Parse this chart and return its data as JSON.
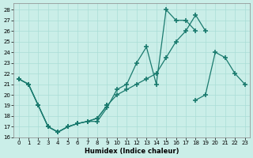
{
  "xlabel": "Humidex (Indice chaleur)",
  "bg_color": "#caeee8",
  "line_color": "#1a7a6e",
  "grid_color": "#aaddd6",
  "xlim": [
    -0.5,
    23.5
  ],
  "ylim": [
    16,
    28.6
  ],
  "xticks": [
    0,
    1,
    2,
    3,
    4,
    5,
    6,
    7,
    8,
    9,
    10,
    11,
    12,
    13,
    14,
    15,
    16,
    17,
    18,
    19,
    20,
    21,
    22,
    23
  ],
  "yticks": [
    16,
    17,
    18,
    19,
    20,
    21,
    22,
    23,
    24,
    25,
    26,
    27,
    28
  ],
  "line1_x": [
    0,
    1,
    2,
    3,
    4,
    5,
    6,
    7,
    8,
    9,
    10,
    11,
    12,
    13,
    14,
    15,
    16,
    17,
    18
  ],
  "line1_y": [
    21.5,
    21.0,
    19.0,
    17.0,
    16.5,
    17.0,
    17.3,
    17.5,
    17.5,
    18.8,
    20.5,
    21.0,
    23.0,
    24.5,
    21.0,
    28.0,
    27.0,
    27.0,
    26.0
  ],
  "line2_x": [
    0,
    1,
    2,
    3,
    4,
    5,
    6,
    7,
    8,
    9,
    10,
    11,
    12,
    13,
    14,
    15,
    16,
    17,
    18,
    19
  ],
  "line2_y": [
    21.5,
    21.0,
    19.0,
    17.0,
    16.5,
    17.0,
    17.3,
    17.5,
    17.8,
    19.0,
    20.0,
    20.5,
    21.0,
    21.5,
    22.0,
    23.5,
    25.0,
    26.0,
    27.5,
    26.0
  ],
  "line3_x": [
    0,
    1,
    2,
    3,
    4,
    5,
    6,
    7,
    8,
    9,
    18,
    19,
    20,
    21,
    22,
    23
  ],
  "line3_y": [
    21.5,
    21.0,
    19.0,
    17.0,
    16.5,
    17.0,
    17.3,
    17.5,
    17.8,
    19.0,
    19.5,
    20.0,
    24.0,
    23.5,
    22.0,
    21.0
  ]
}
